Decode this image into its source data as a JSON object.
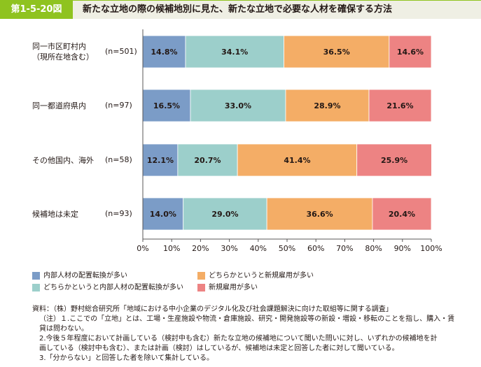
{
  "header": {
    "figure_number": "第1-5-20図",
    "title": "新たな立地の際の候補地別に見た、新たな立地で必要な人材を確保する方法"
  },
  "colors": {
    "header_accent": "#8fc31f",
    "header_bg": "#efefe4",
    "series": [
      "#7b9cc7",
      "#9ccfcb",
      "#f4ad66",
      "#ed8383"
    ]
  },
  "chart_data": {
    "type": "bar",
    "orientation": "horizontal",
    "stacked": true,
    "categories": [
      {
        "label_lines": [
          "同一市区町村内",
          "（現所在地含む）"
        ],
        "n": "(n=501)"
      },
      {
        "label_lines": [
          "同一都道府県内"
        ],
        "n": "(n=97)"
      },
      {
        "label_lines": [
          "その他国内、海外"
        ],
        "n": "(n=58)"
      },
      {
        "label_lines": [
          "候補地は未定"
        ],
        "n": "(n=93)"
      }
    ],
    "series": [
      {
        "name": "内部人材の配置転換が多い",
        "values": [
          14.8,
          16.5,
          12.1,
          14.0
        ]
      },
      {
        "name": "どちらかというと内部人材の配置転換が多い",
        "values": [
          34.1,
          33.0,
          20.7,
          29.0
        ]
      },
      {
        "name": "どちらかというと新規雇用が多い",
        "values": [
          36.5,
          28.9,
          41.4,
          36.6
        ]
      },
      {
        "name": "新規雇用が多い",
        "values": [
          14.6,
          21.6,
          25.9,
          20.4
        ]
      }
    ],
    "value_suffix": "%",
    "xlim": [
      0,
      100
    ],
    "xticks": [
      "0%",
      "10%",
      "20%",
      "30%",
      "40%",
      "50%",
      "60%",
      "70%",
      "80%",
      "90%",
      "100%"
    ],
    "legend": {
      "position": "bottom",
      "columns": 2
    },
    "grid": false
  },
  "notes": {
    "source": "資料：（株）野村総合研究所「地域における中小企業のデジタル化及び社会課題解決に向けた取組等に関する調査」",
    "note1_a": "（注）１.ここでの「立地」とは、工場・生産施設や物流・倉庫施設、研究・開発施設等の新設・増設・移転のことを指し、購入・賃",
    "note1_b": "貸は問わない。",
    "note2_a": "2.今後５年程度において計画している（検討中も含む）新たな立地の候補地について聞いた問いに対し、いずれかの候補地を計",
    "note2_b": "画している（検討中も含む）、または計画（検討）はしているが、候補地は未定と回答した者に対して聞いている。",
    "note3": "3.「分からない」と回答した者を除いて集計している。"
  }
}
